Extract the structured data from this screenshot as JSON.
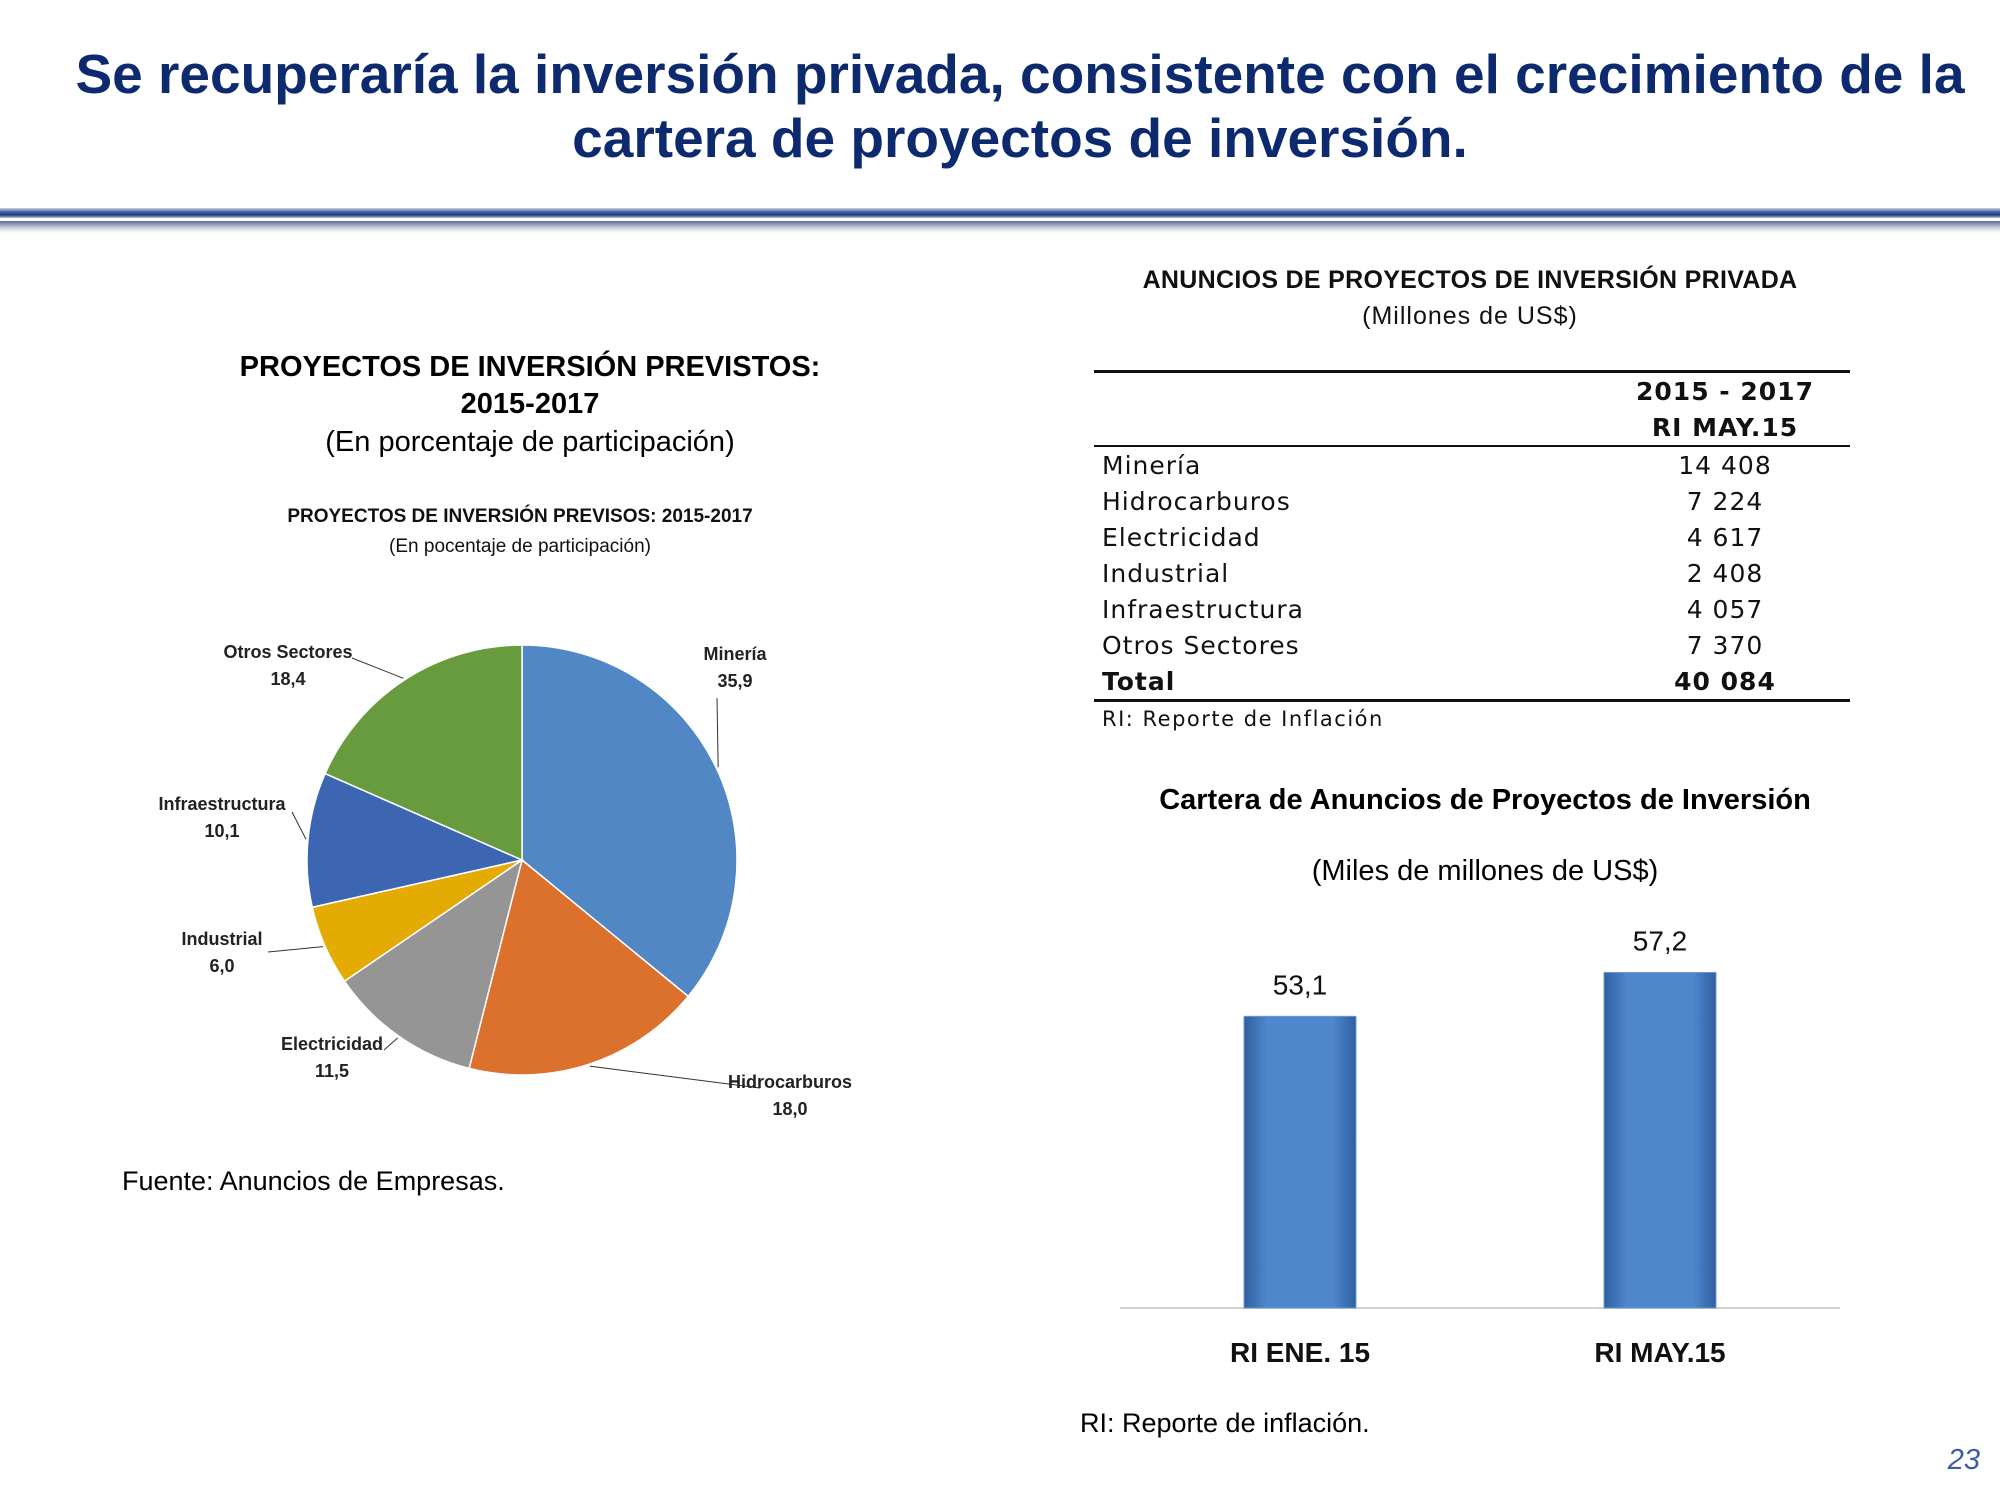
{
  "slide": {
    "title": "Se recuperaría la inversión privada, consistente con el crecimiento de la cartera de proyectos de inversión.",
    "page_number": "23"
  },
  "colors": {
    "title": "#0d2a6e",
    "mineria": "#5087c4",
    "hidrocarburos": "#dc712e",
    "electricidad": "#959595",
    "industrial": "#e4ab05",
    "infraestructura": "#3c66b2",
    "otros": "#679b3e",
    "bar": "#4f86cc"
  },
  "pie_panel": {
    "title": "PROYECTOS DE INVERSIÓN PREVISTOS:\n2015-2017",
    "subtitle": "(En porcentaje de participación)",
    "inner_title": "PROYECTOS DE INVERSIÓN PREVISOS: 2015-2017",
    "inner_subtitle": "(En pocentaje de participación)",
    "source": "Fuente: Anuncios de Empresas."
  },
  "table": {
    "title": "ANUNCIOS DE PROYECTOS DE INVERSIÓN PRIVADA",
    "subtitle": "(Millones de US$)",
    "col_header_1": "2015 - 2017",
    "col_header_2": "RI MAY.15",
    "rows": [
      {
        "label": "Minería",
        "value": "14 408"
      },
      {
        "label": "Hidrocarburos",
        "value": "7 224"
      },
      {
        "label": "Electricidad",
        "value": "4 617"
      },
      {
        "label": "Industrial",
        "value": "2 408"
      },
      {
        "label": "Infraestructura",
        "value": "4 057"
      },
      {
        "label": "Otros Sectores",
        "value": "7 370"
      },
      {
        "label": "Total",
        "value": "40 084"
      }
    ],
    "note": "RI: Reporte de Inflación"
  },
  "bar_panel": {
    "title": "Cartera de Anuncios de Proyectos de Inversión",
    "subtitle": "(Miles de millones de US$)",
    "note": "RI: Reporte de inflación."
  },
  "chart_data": [
    {
      "type": "pie",
      "title": "PROYECTOS DE INVERSIÓN PREVISOS: 2015-2017",
      "subtitle": "(En pocentaje de participación)",
      "categories": [
        "Minería",
        "Hidrocarburos",
        "Electricidad",
        "Industrial",
        "Infraestructura",
        "Otros Sectores"
      ],
      "values": [
        35.9,
        18.0,
        11.5,
        6.0,
        10.1,
        18.4
      ],
      "value_labels": [
        "35,9",
        "18,0",
        "11,5",
        "6,0",
        "10,1",
        "18,4"
      ],
      "legend": "none"
    },
    {
      "type": "bar",
      "title": "Cartera de Anuncios de Proyectos de Inversión",
      "subtitle": "(Miles de millones de US$)",
      "categories": [
        "RI ENE. 15",
        "RI MAY.15"
      ],
      "values": [
        53.1,
        57.2
      ],
      "value_labels": [
        "53,1",
        "57,2"
      ],
      "grid": false,
      "legend": "none"
    }
  ]
}
